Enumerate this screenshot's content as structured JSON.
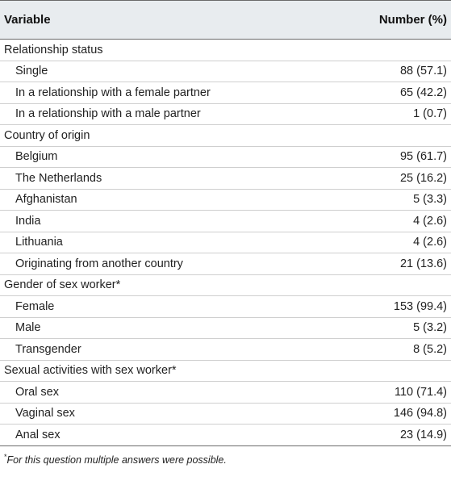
{
  "table": {
    "headers": {
      "variable": "Variable",
      "number": "Number (%)"
    },
    "groups": [
      {
        "title": "Relationship status",
        "rows": [
          {
            "label": "Single",
            "value": "88 (57.1)"
          },
          {
            "label": "In a relationship with a female partner",
            "value": "65 (42.2)"
          },
          {
            "label": "In a relationship with a male partner",
            "value": "1 (0.7)"
          }
        ]
      },
      {
        "title": "Country of origin",
        "rows": [
          {
            "label": "Belgium",
            "value": "95 (61.7)"
          },
          {
            "label": "The Netherlands",
            "value": "25 (16.2)"
          },
          {
            "label": "Afghanistan",
            "value": "5 (3.3)"
          },
          {
            "label": "India",
            "value": "4 (2.6)"
          },
          {
            "label": "Lithuania",
            "value": "4 (2.6)"
          },
          {
            "label": "Originating from another country",
            "value": "21 (13.6)"
          }
        ]
      },
      {
        "title": "Gender of sex worker*",
        "rows": [
          {
            "label": "Female",
            "value": "153 (99.4)"
          },
          {
            "label": "Male",
            "value": "5 (3.2)"
          },
          {
            "label": "Transgender",
            "value": "8 (5.2)"
          }
        ]
      },
      {
        "title": "Sexual activities with sex worker*",
        "rows": [
          {
            "label": "Oral sex",
            "value": "110 (71.4)"
          },
          {
            "label": "Vaginal sex",
            "value": "146 (94.8)"
          },
          {
            "label": "Anal sex",
            "value": "23 (14.9)"
          }
        ]
      }
    ]
  },
  "footnote": {
    "marker": "*",
    "text": "For this question multiple answers were possible."
  }
}
